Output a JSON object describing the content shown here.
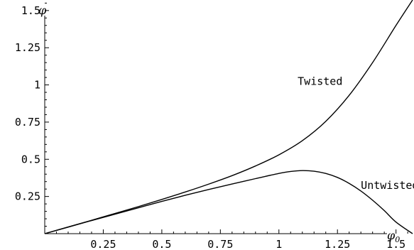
{
  "chart_data": {
    "type": "line",
    "title": "",
    "xlabel": "φ",
    "xlabel_subscript": "0",
    "ylabel": "φ",
    "xlim": [
      0,
      1.5708
    ],
    "ylim": [
      0,
      1.5708
    ],
    "x_ticks": [
      {
        "value": 0.25,
        "label": "0.25"
      },
      {
        "value": 0.5,
        "label": "0.5"
      },
      {
        "value": 0.75,
        "label": "0.75"
      },
      {
        "value": 1.0,
        "label": "1"
      },
      {
        "value": 1.25,
        "label": "1.25"
      },
      {
        "value": 1.5,
        "label": "1.5"
      }
    ],
    "y_ticks": [
      {
        "value": 0.25,
        "label": "0.25"
      },
      {
        "value": 0.5,
        "label": "0.5"
      },
      {
        "value": 0.75,
        "label": "0.75"
      },
      {
        "value": 1.0,
        "label": "1"
      },
      {
        "value": 1.25,
        "label": "1.25"
      },
      {
        "value": 1.5,
        "label": "1.5"
      }
    ],
    "grid": false,
    "series": [
      {
        "name": "Twisted",
        "x": [
          0,
          0.1,
          0.2,
          0.3,
          0.4,
          0.5,
          0.6,
          0.7,
          0.8,
          0.9,
          1.0,
          1.1,
          1.2,
          1.3,
          1.4,
          1.5,
          1.5708
        ],
        "y": [
          0,
          0.045,
          0.09,
          0.136,
          0.182,
          0.23,
          0.28,
          0.333,
          0.39,
          0.455,
          0.53,
          0.625,
          0.755,
          0.93,
          1.15,
          1.4,
          1.5708
        ]
      },
      {
        "name": "Untwisted",
        "x": [
          0,
          0.1,
          0.2,
          0.3,
          0.4,
          0.5,
          0.6,
          0.7,
          0.8,
          0.9,
          1.0,
          1.05,
          1.1,
          1.15,
          1.2,
          1.25,
          1.3,
          1.35,
          1.4,
          1.45,
          1.5,
          1.5708
        ],
        "y": [
          0,
          0.044,
          0.088,
          0.131,
          0.174,
          0.217,
          0.258,
          0.297,
          0.334,
          0.37,
          0.405,
          0.418,
          0.424,
          0.42,
          0.405,
          0.378,
          0.338,
          0.287,
          0.225,
          0.155,
          0.078,
          0
        ]
      }
    ],
    "annotations": [
      {
        "text": "Twisted",
        "x": 1.08,
        "y": 1.0
      },
      {
        "text": "Untwisted",
        "x": 1.35,
        "y": 0.3
      }
    ]
  }
}
